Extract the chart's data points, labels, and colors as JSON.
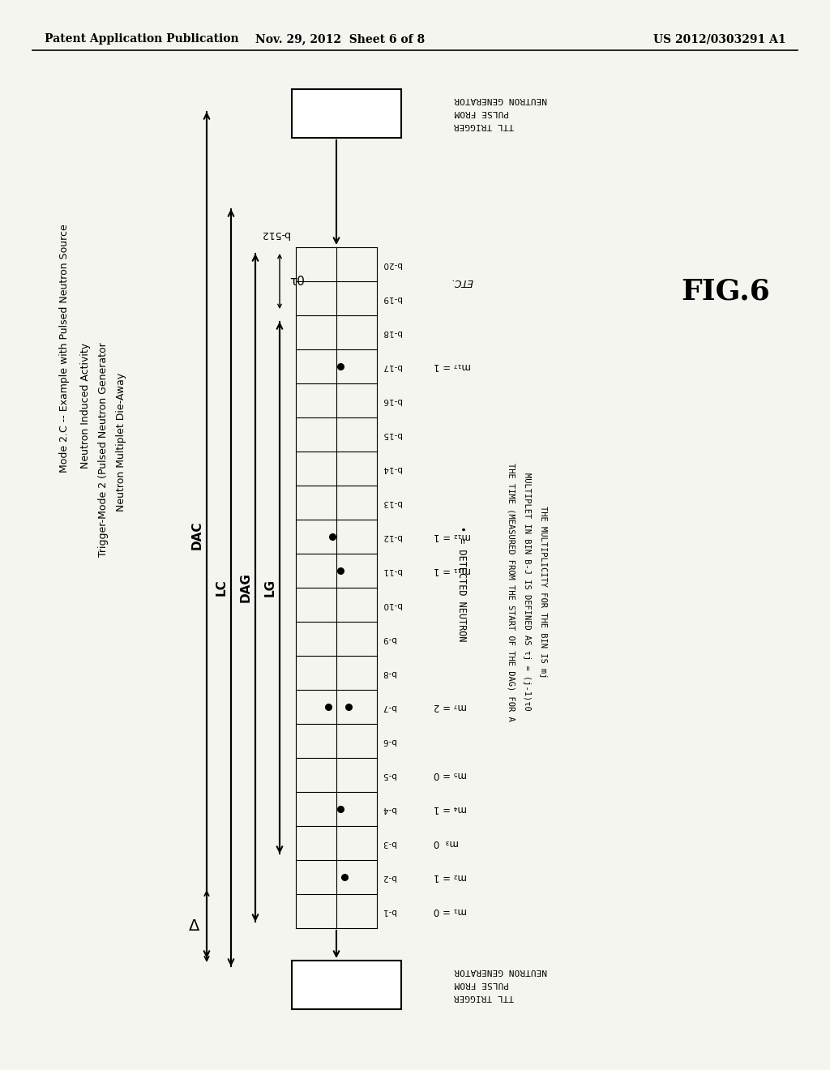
{
  "header_left": "Patent Application Publication",
  "header_center": "Nov. 29, 2012  Sheet 6 of 8",
  "header_right": "US 2012/0303291 A1",
  "fig_label": "FIG.6",
  "mode_line1": "Mode 2.C -- Example with Pulsed Neutron Source",
  "mode_line2": "Neutron Induced Activity",
  "mode_line3": "Trigger-Mode 2 (Pulsed Neutron Generator",
  "mode_line4": "Neutron Multiplet Die-Away",
  "dac_label": "DAC",
  "lc_label": "LC",
  "dag_label": "DAG",
  "lg_label": "LG",
  "tau0_label": "τ0",
  "delta_label": "Δ",
  "bin_top_label": "b-512",
  "bin_labels": [
    "b-1",
    "b-2",
    "b-3",
    "b-4",
    "b-5",
    "b-6",
    "b-7",
    "b-8",
    "b-9",
    "b-10",
    "b-11",
    "b-12",
    "b-13",
    "b-14",
    "b-15",
    "b-16",
    "b-17",
    "b-18",
    "b-19",
    "b-20"
  ],
  "ttl_top_lines": [
    "TTL TRIGGER",
    "PULSE FROM",
    "NEUTRON GENERATOR"
  ],
  "ttl_bot_lines": [
    "TTL TRIGGER",
    "PULSE FROM",
    "NEUTRON GENERATOR"
  ],
  "m_annotations": {
    "0": "m₁ = 0",
    "1": "m₂ = 1",
    "2": "m₃  0",
    "3": "m₄ = 1",
    "4": "m₅ = 0",
    "6": "m₇ = 2",
    "10": "m₁₁ = 1",
    "11": "m₁₂ = 1",
    "16": "m₁₇ = 1"
  },
  "etc_label": "ETC.",
  "dot_legend": "• = DETECTED NEUTRON",
  "explanation_lines": [
    "THE TIME (MEASURED FROM THE START OF THE DAG) FOR A",
    "MULTIPLET IN BIN B-J IS DEFINED AS τj = (j-1)τ0",
    "THE MULTIPLICITY FOR THE BIN IS mj"
  ],
  "bin_dot_positions": {
    "1": [
      0.6
    ],
    "3": [
      0.55
    ],
    "6": [
      0.4,
      0.65
    ],
    "10": [
      0.55
    ],
    "11": [
      0.45
    ],
    "16": [
      0.55
    ]
  },
  "background_color": "#f5f5f0",
  "line_color": "#000000",
  "text_color": "#000000"
}
